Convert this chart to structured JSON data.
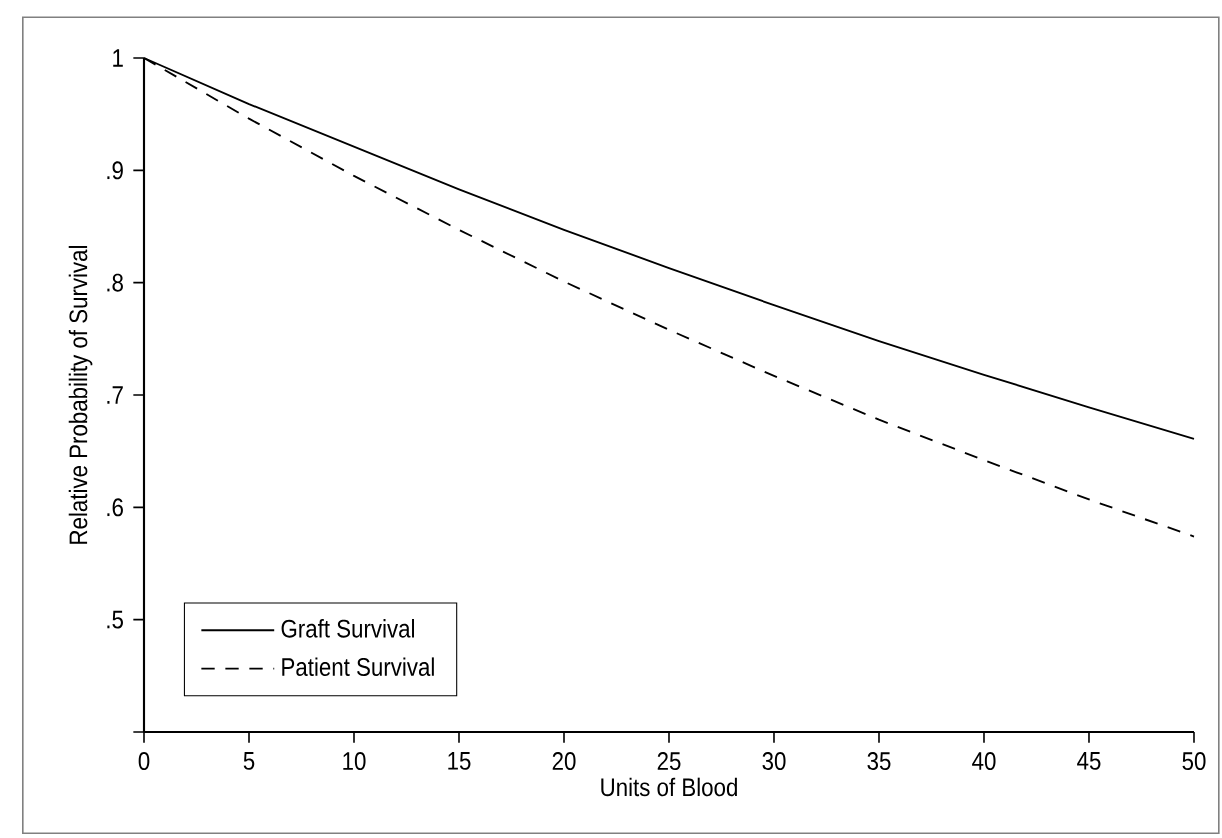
{
  "chart_data": {
    "type": "line",
    "xlabel": "Units of Blood",
    "ylabel": "Relative Probability of Survival",
    "x": [
      0,
      5,
      10,
      15,
      20,
      25,
      30,
      35,
      40,
      45,
      50
    ],
    "series": [
      {
        "name": "Graft Survival",
        "color": "#000000",
        "line_style": "solid",
        "values": [
          1,
          0.959,
          0.921,
          0.883,
          0.847,
          0.813,
          0.78,
          0.748,
          0.718,
          0.689,
          0.661
        ]
      },
      {
        "name": "Patient Survival",
        "color": "#000000",
        "line_style": "dashed",
        "values": [
          1,
          0.946,
          0.895,
          0.847,
          0.801,
          0.758,
          0.717,
          0.678,
          0.642,
          0.607,
          0.574
        ]
      }
    ],
    "xlim": [
      0,
      50
    ],
    "ylim": [
      0.4,
      1
    ],
    "xticks": [
      0,
      5,
      10,
      15,
      20,
      25,
      30,
      35,
      40,
      45,
      50
    ],
    "yticks": [
      {
        "value": 0.4,
        "label": null
      },
      {
        "value": 0.5,
        "label": ".5"
      },
      {
        "value": 0.6,
        "label": ".6"
      },
      {
        "value": 0.7,
        "label": ".7"
      },
      {
        "value": 0.8,
        "label": ".8"
      },
      {
        "value": 0.9,
        "label": ".9"
      },
      1
    ],
    "legend": "bottom left",
    "grid": false,
    "marker": "none"
  }
}
